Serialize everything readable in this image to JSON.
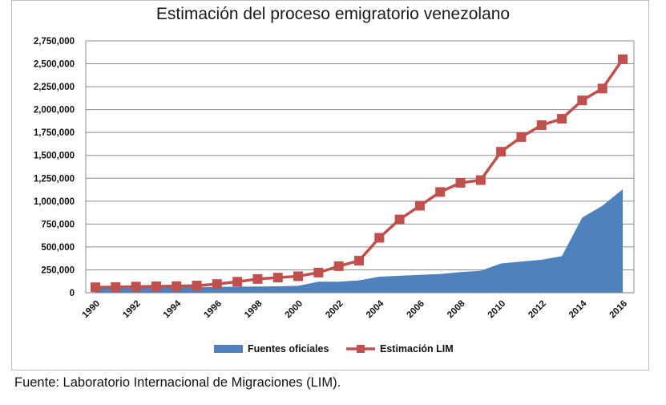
{
  "chart_data": {
    "type": "line",
    "title": "Estimación del proceso emigratorio venezolano",
    "xlabel": "",
    "ylabel": "",
    "ylim": [
      0,
      2750000
    ],
    "y_ticks": [
      0,
      250000,
      500000,
      750000,
      1000000,
      1250000,
      1500000,
      1750000,
      2000000,
      2250000,
      2500000,
      2750000
    ],
    "y_tick_labels": [
      "0",
      "250,000",
      "500,000",
      "750,000",
      "1,000,000",
      "1,250,000",
      "1,500,000",
      "1,750,000",
      "2,000,000",
      "2,250,000",
      "2,500,000",
      "2,750,000"
    ],
    "x": [
      1990,
      1991,
      1992,
      1993,
      1994,
      1995,
      1996,
      1997,
      1998,
      1999,
      2000,
      2001,
      2002,
      2003,
      2004,
      2005,
      2006,
      2007,
      2008,
      2009,
      2010,
      2011,
      2012,
      2013,
      2014,
      2015,
      2016
    ],
    "x_tick_labels": [
      "1990",
      "1992",
      "1994",
      "1996",
      "1998",
      "2000",
      "2002",
      "2004",
      "2006",
      "2008",
      "2010",
      "2012",
      "2014",
      "2016"
    ],
    "grid": true,
    "legend_position": "bottom",
    "series": [
      {
        "name": "Fuentes oficiales",
        "kind": "area",
        "color": "#4f81bd",
        "values": [
          55000,
          55000,
          57000,
          58000,
          60000,
          62000,
          64000,
          66000,
          68000,
          70000,
          75000,
          120000,
          120000,
          135000,
          175000,
          185000,
          195000,
          205000,
          225000,
          240000,
          320000,
          340000,
          360000,
          400000,
          820000,
          950000,
          1130000
        ]
      },
      {
        "name": "Estimación LIM",
        "kind": "line",
        "color": "#c0504d",
        "values": [
          60000,
          62000,
          67000,
          70000,
          72000,
          78000,
          95000,
          120000,
          150000,
          165000,
          180000,
          220000,
          290000,
          350000,
          600000,
          800000,
          950000,
          1100000,
          1200000,
          1230000,
          1540000,
          1700000,
          1830000,
          1900000,
          2100000,
          2230000,
          2550000
        ]
      }
    ]
  },
  "source": "Fuente: Laboratorio Internacional de Migraciones (LIM)."
}
